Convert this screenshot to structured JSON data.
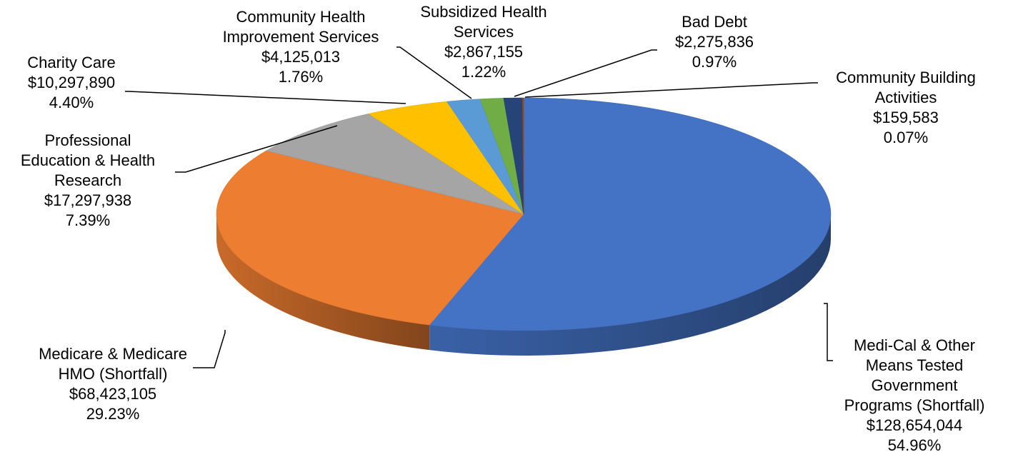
{
  "chart_data": {
    "type": "pie",
    "title": "",
    "style": "3d",
    "slices": [
      {
        "name": "Medi-Cal & Other Means Tested Government Programs (Shortfall)",
        "label_lines": [
          "Medi-Cal & Other",
          "Means Tested",
          "Government",
          "Programs (Shortfall)"
        ],
        "value": 128654044,
        "value_text": "$128,654,044",
        "percent": 54.96,
        "percent_text": "54.96%",
        "color": "#4472C4"
      },
      {
        "name": "Medicare & Medicare HMO (Shortfall)",
        "label_lines": [
          "Medicare & Medicare",
          "HMO (Shortfall)"
        ],
        "value": 68423105,
        "value_text": "$68,423,105",
        "percent": 29.23,
        "percent_text": "29.23%",
        "color": "#ED7D31"
      },
      {
        "name": "Professional Education & Health Research",
        "label_lines": [
          "Professional",
          "Education & Health",
          "Research"
        ],
        "value": 17297938,
        "value_text": "$17,297,938",
        "percent": 7.39,
        "percent_text": "7.39%",
        "color": "#A5A5A5"
      },
      {
        "name": "Charity Care",
        "label_lines": [
          "Charity Care"
        ],
        "value": 10297890,
        "value_text": "$10,297,890",
        "percent": 4.4,
        "percent_text": "4.40%",
        "color": "#FFC000"
      },
      {
        "name": "Community Health Improvement Services",
        "label_lines": [
          "Community Health",
          "Improvement Services"
        ],
        "value": 4125013,
        "value_text": "$4,125,013",
        "percent": 1.76,
        "percent_text": "1.76%",
        "color": "#5B9BD5"
      },
      {
        "name": "Subsidized Health Services",
        "label_lines": [
          "Subsidized Health",
          "Services"
        ],
        "value": 2867155,
        "value_text": "$2,867,155",
        "percent": 1.22,
        "percent_text": "1.22%",
        "color": "#70AD47"
      },
      {
        "name": "Bad Debt",
        "label_lines": [
          "Bad Debt"
        ],
        "value": 2275836,
        "value_text": "$2,275,836",
        "percent": 0.97,
        "percent_text": "0.97%",
        "color": "#264478"
      },
      {
        "name": "Community Building Activities",
        "label_lines": [
          "Community Building",
          "Activities"
        ],
        "value": 159583,
        "value_text": "$159,583",
        "percent": 0.07,
        "percent_text": "0.07%",
        "color": "#9E480E"
      }
    ],
    "legend": "none",
    "data_labels": "outside with leader lines"
  }
}
